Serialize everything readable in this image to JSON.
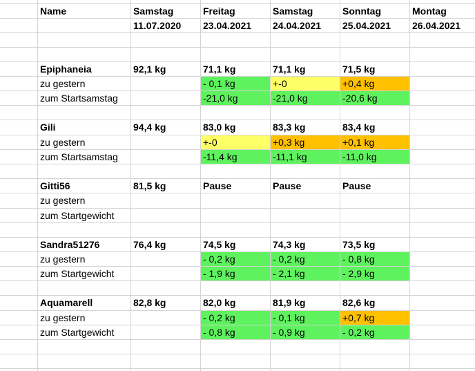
{
  "header": {
    "name_label": "Name",
    "columns": [
      {
        "day": "Samstag",
        "date": "11.07.2020"
      },
      {
        "day": "Freitag",
        "date": "23.04.2021"
      },
      {
        "day": "Samstag",
        "date": "24.04.2021"
      },
      {
        "day": "Sonntag",
        "date": "25.04.2021"
      },
      {
        "day": "Montag",
        "date": "26.04.2021"
      }
    ]
  },
  "people": [
    {
      "name": "Epiphaneia",
      "start": "92,1 kg",
      "weights": [
        "71,1 kg",
        "71,1 kg",
        "71,5 kg"
      ],
      "row2_label": "zu gestern",
      "row2": [
        {
          "t": "- 0,1 kg",
          "c": "green"
        },
        {
          "t": "+-0",
          "c": "yellow"
        },
        {
          "t": "+0,4 kg",
          "c": "orange"
        }
      ],
      "row3_label": "zum Startsamstag",
      "row3": [
        {
          "t": "-21,0 kg",
          "c": "green"
        },
        {
          "t": "-21,0 kg",
          "c": "green"
        },
        {
          "t": "-20,6 kg",
          "c": "green"
        }
      ]
    },
    {
      "name": "Gili",
      "start": "94,4 kg",
      "weights": [
        "83,0 kg",
        "83,3 kg",
        "83,4 kg"
      ],
      "row2_label": "zu gestern",
      "row2": [
        {
          "t": "+-0",
          "c": "yellow"
        },
        {
          "t": "+0,3 kg",
          "c": "orange"
        },
        {
          "t": "+0,1 kg",
          "c": "orange"
        }
      ],
      "row3_label": "zum Startsamstag",
      "row3": [
        {
          "t": "-11,4 kg",
          "c": "green"
        },
        {
          "t": "-11,1 kg",
          "c": "green"
        },
        {
          "t": "-11,0 kg",
          "c": "green"
        }
      ]
    },
    {
      "name": "Gitti56",
      "start": "81,5 kg",
      "weights": [
        "Pause",
        "Pause",
        "Pause"
      ],
      "row2_label": "zu gestern",
      "row2": [],
      "row3_label": "zum Startgewicht",
      "row3": []
    },
    {
      "name": "Sandra51276",
      "start": "76,4 kg",
      "weights": [
        "74,5 kg",
        "74,3 kg",
        "73,5 kg"
      ],
      "row2_label": "zu gestern",
      "row2": [
        {
          "t": "- 0,2 kg",
          "c": "green"
        },
        {
          "t": "- 0,2 kg",
          "c": "green"
        },
        {
          "t": "- 0,8 kg",
          "c": "green"
        }
      ],
      "row3_label": "zum Startgewicht",
      "row3": [
        {
          "t": "- 1,9 kg",
          "c": "green"
        },
        {
          "t": "- 2,1 kg",
          "c": "green"
        },
        {
          "t": "- 2,9 kg",
          "c": "green"
        }
      ]
    },
    {
      "name": "Aquamarell",
      "start": "82,8 kg",
      "weights": [
        "82,0 kg",
        "81,9 kg",
        "82,6 kg"
      ],
      "row2_label": "zu gestern",
      "row2": [
        {
          "t": "- 0,2 kg",
          "c": "green"
        },
        {
          "t": "- 0,1 kg",
          "c": "green"
        },
        {
          "t": "+0,7 kg",
          "c": "orange"
        }
      ],
      "row3_label": "zum Startgewicht",
      "row3": [
        {
          "t": "- 0,8 kg",
          "c": "green"
        },
        {
          "t": "- 0,9 kg",
          "c": "green"
        },
        {
          "t": "- 0,2 kg",
          "c": "green"
        }
      ]
    }
  ],
  "colors": {
    "green": "#5ff25f",
    "yellow": "#ffff66",
    "orange": "#ffc000",
    "grid": "#d4d4d4"
  }
}
